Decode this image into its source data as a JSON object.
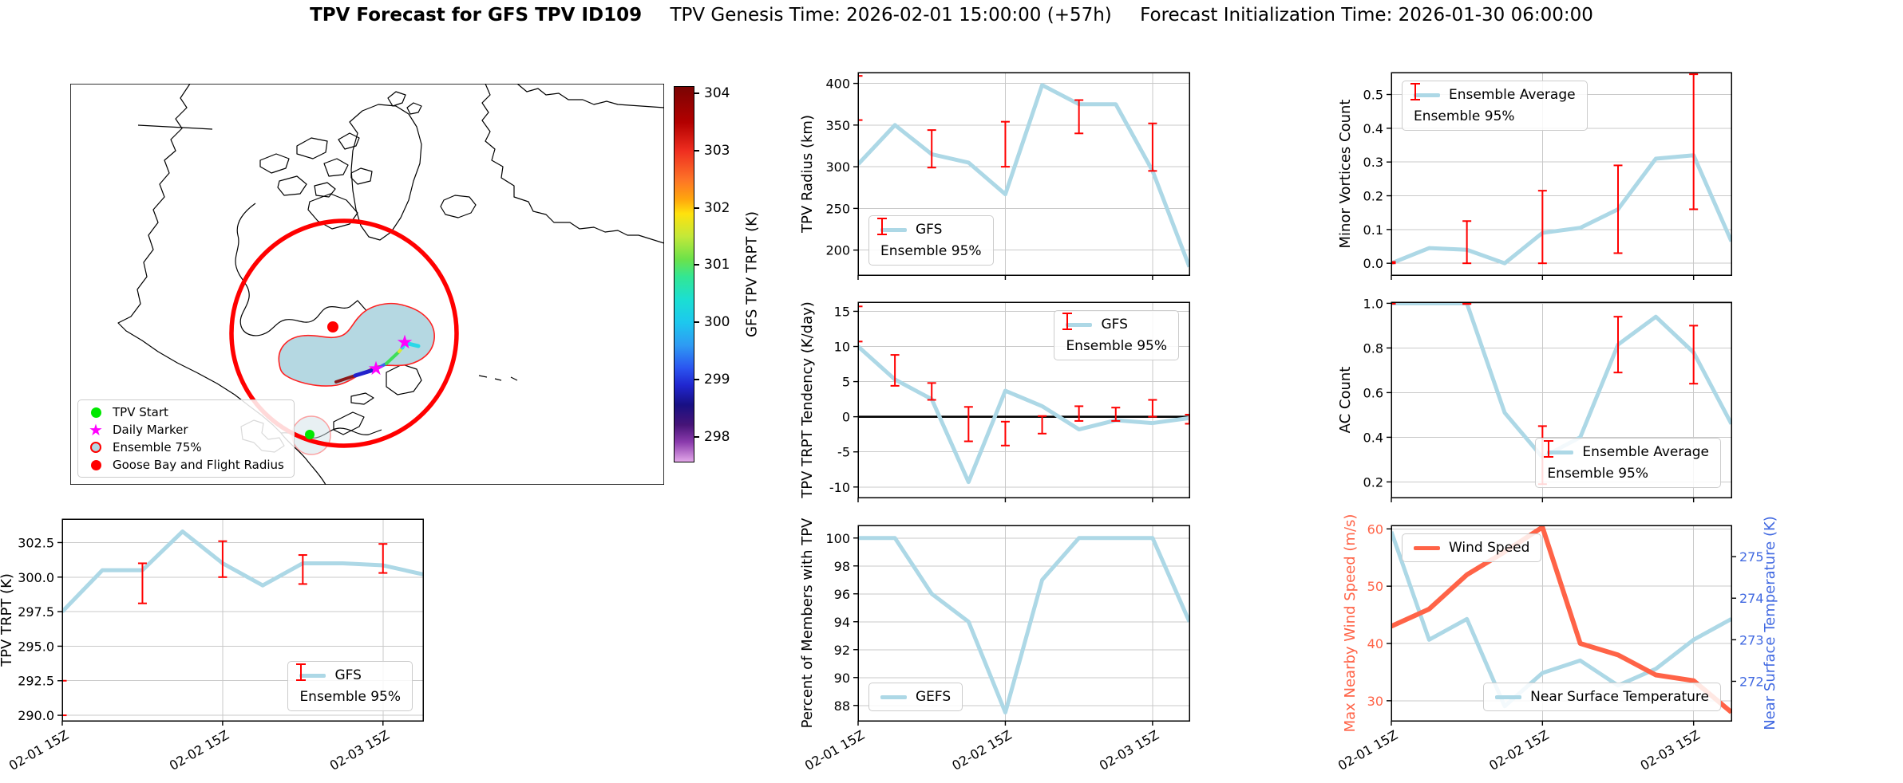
{
  "title": {
    "main": "TPV Forecast for GFS TPV ID109",
    "genesis": "TPV Genesis Time: 2026-02-01 15:00:00 (+57h)",
    "init": "Forecast Initialization Time: 2026-01-30 06:00:00"
  },
  "colors": {
    "gfs": "#ADD8E6",
    "error": "#FF0000",
    "wind": "#FF6347",
    "temp_axis": "#4169E1",
    "grid": "#C9C9C9",
    "spine": "#000000",
    "map_circle": "#FF0000",
    "ensemble_fill": "#B5D8E2",
    "star": "#FF00FF",
    "tpv_start": "#00E800"
  },
  "x_axis": {
    "n_points": 10,
    "tick_indices": [
      0,
      4,
      8
    ],
    "tick_labels": [
      "02-01 15Z",
      "02-02 15Z",
      "02-03 15Z"
    ]
  },
  "map": {
    "legend": [
      {
        "marker": "dot-green",
        "label": "TPV Start"
      },
      {
        "marker": "star-magenta",
        "label": "Daily Marker"
      },
      {
        "marker": "circle-ensemble",
        "label": "Ensemble 75%"
      },
      {
        "marker": "dot-red",
        "label": "Goose Bay and Flight Radius"
      }
    ],
    "colorbar": {
      "label": "GFS TPV TRPT (K)",
      "ticks": [
        304,
        303,
        302,
        301,
        300,
        299,
        298
      ],
      "vmin": 297.56,
      "vmax": 304.12
    }
  },
  "chart_data": [
    {
      "id": "tpv_radius",
      "type": "line",
      "ylabel": "TPV Radius (km)",
      "ylabel_dx": -58,
      "yticks": [
        200,
        250,
        300,
        350,
        400
      ],
      "ytick_labels": [
        "200",
        "250",
        "300",
        "350",
        "400"
      ],
      "ylim": [
        170,
        413
      ],
      "x_tick_labels_shown": false,
      "series": [
        {
          "name": "GFS",
          "color": "#ADD8E6",
          "width": 5,
          "values": [
            303,
            350,
            315,
            305,
            267,
            398,
            375,
            375,
            295,
            180
          ]
        }
      ],
      "errorbars": [
        {
          "i": 0,
          "lo": 356,
          "hi": 409
        },
        {
          "i": 2,
          "lo": 299,
          "hi": 344
        },
        {
          "i": 4,
          "lo": 300,
          "hi": 354
        },
        {
          "i": 6,
          "lo": 340,
          "hi": 380
        },
        {
          "i": 8,
          "lo": 295,
          "hi": 352
        }
      ],
      "legend": {
        "pos": "lower-left",
        "items": [
          {
            "glyph": "line",
            "color": "#ADD8E6",
            "label": "GFS"
          },
          {
            "glyph": "errorbar",
            "color": "#FF0000",
            "label": "Ensemble 95%"
          }
        ]
      }
    },
    {
      "id": "tpv_trpt_tendency",
      "type": "line",
      "ylabel": "TPV TRPT Tendency (K/day)",
      "ylabel_dx": -58,
      "yticks": [
        -10,
        -5,
        0,
        5,
        10,
        15
      ],
      "ytick_labels": [
        "-10",
        "-5",
        "0",
        "5",
        "10",
        "15"
      ],
      "ylim": [
        -11.5,
        16.3
      ],
      "zero_line": true,
      "x_tick_labels_shown": false,
      "series": [
        {
          "name": "GFS",
          "color": "#ADD8E6",
          "width": 5,
          "values": [
            10,
            5.3,
            2.5,
            -9.3,
            3.7,
            1.5,
            -1.8,
            -0.5,
            -0.9,
            -0.2
          ]
        }
      ],
      "errorbars": [
        {
          "i": 0,
          "lo": 10.7,
          "hi": 15.7
        },
        {
          "i": 1,
          "lo": 4.4,
          "hi": 8.8
        },
        {
          "i": 2,
          "lo": 2.4,
          "hi": 4.8
        },
        {
          "i": 3,
          "lo": -3.5,
          "hi": 1.4
        },
        {
          "i": 4,
          "lo": -4.1,
          "hi": -0.7
        },
        {
          "i": 5,
          "lo": -2.4,
          "hi": 0.1
        },
        {
          "i": 6,
          "lo": -0.6,
          "hi": 1.5
        },
        {
          "i": 7,
          "lo": -0.6,
          "hi": 1.3
        },
        {
          "i": 8,
          "lo": 0,
          "hi": 2.4
        },
        {
          "i": 9,
          "lo": -1,
          "hi": 0.3
        }
      ],
      "legend": {
        "pos": "upper-right",
        "items": [
          {
            "glyph": "line",
            "color": "#ADD8E6",
            "label": "GFS"
          },
          {
            "glyph": "errorbar",
            "color": "#FF0000",
            "label": "Ensemble 95%"
          }
        ]
      }
    },
    {
      "id": "percent_members",
      "type": "line",
      "ylabel": "Percent of Members with TPV",
      "ylabel_dx": -58,
      "yticks": [
        88,
        90,
        92,
        94,
        96,
        98,
        100
      ],
      "ytick_labels": [
        "88",
        "90",
        "92",
        "94",
        "96",
        "98",
        "100"
      ],
      "ylim": [
        86.9,
        100.9
      ],
      "x_tick_labels_shown": true,
      "series": [
        {
          "name": "GEFS",
          "color": "#ADD8E6",
          "width": 5,
          "values": [
            100,
            100,
            96,
            94,
            87.5,
            97,
            100,
            100,
            100,
            94
          ]
        }
      ],
      "legend": {
        "pos": "lower-left",
        "items": [
          {
            "glyph": "line",
            "color": "#ADD8E6",
            "label": "GEFS"
          }
        ]
      }
    },
    {
      "id": "minor_vortices",
      "type": "line",
      "ylabel": "Minor Vortices Count",
      "ylabel_dx": -52,
      "yticks": [
        0,
        0.1,
        0.2,
        0.3,
        0.4,
        0.5
      ],
      "ytick_labels": [
        "0.0",
        "0.1",
        "0.2",
        "0.3",
        "0.4",
        "0.5"
      ],
      "ylim": [
        -0.035,
        0.565
      ],
      "x_tick_labels_shown": false,
      "series": [
        {
          "name": "Ensemble Average",
          "color": "#ADD8E6",
          "width": 5,
          "values": [
            0,
            0.045,
            0.04,
            0,
            0.09,
            0.105,
            0.16,
            0.31,
            0.32,
            0.065
          ]
        }
      ],
      "errorbars": [
        {
          "i": 0,
          "lo": 0,
          "hi": 0.004
        },
        {
          "i": 2,
          "lo": 0,
          "hi": 0.125
        },
        {
          "i": 4,
          "lo": 0,
          "hi": 0.215
        },
        {
          "i": 6,
          "lo": 0.03,
          "hi": 0.29
        },
        {
          "i": 8,
          "lo": 0.16,
          "hi": 0.56
        }
      ],
      "legend": {
        "pos": "upper-left",
        "items": [
          {
            "glyph": "line",
            "color": "#ADD8E6",
            "label": "Ensemble Average"
          },
          {
            "glyph": "errorbar",
            "color": "#FF0000",
            "label": "Ensemble 95%"
          }
        ]
      }
    },
    {
      "id": "ac_count",
      "type": "line",
      "ylabel": "AC Count",
      "ylabel_dx": -52,
      "yticks": [
        0.2,
        0.4,
        0.6,
        0.8,
        1.0
      ],
      "ytick_labels": [
        "0.2",
        "0.4",
        "0.6",
        "0.8",
        "1.0"
      ],
      "ylim": [
        0.13,
        1.005
      ],
      "x_tick_labels_shown": false,
      "series": [
        {
          "name": "Ensemble Average",
          "color": "#ADD8E6",
          "width": 5,
          "values": [
            1,
            1,
            1,
            0.51,
            0.31,
            0.4,
            0.815,
            0.94,
            0.78,
            0.46
          ]
        }
      ],
      "errorbars": [
        {
          "i": 0,
          "lo": 0.998,
          "hi": 1.002
        },
        {
          "i": 2,
          "lo": 0.997,
          "hi": 1.002
        },
        {
          "i": 4,
          "lo": 0.19,
          "hi": 0.45
        },
        {
          "i": 6,
          "lo": 0.69,
          "hi": 0.94
        },
        {
          "i": 8,
          "lo": 0.64,
          "hi": 0.9
        }
      ],
      "legend": {
        "pos": "lower-right",
        "items": [
          {
            "glyph": "line",
            "color": "#ADD8E6",
            "label": "Ensemble Average"
          },
          {
            "glyph": "errorbar",
            "color": "#FF0000",
            "label": "Ensemble 95%"
          }
        ]
      }
    },
    {
      "id": "wind_temp",
      "type": "line-dual",
      "ylabel": "Max Nearby Wind Speed (m/s)",
      "ylabel_dx": -46,
      "ylabel_color": "#FF6347",
      "ylabel_right": "Near Surface Temperature (K)",
      "ylabel_right_dx": 54,
      "ylabel_right_color": "#4169E1",
      "yticks": [
        30,
        40,
        50,
        60
      ],
      "ytick_labels": [
        "30",
        "40",
        "50",
        "60"
      ],
      "ytick_color": "#FF6347",
      "ylim": [
        26.5,
        60.6
      ],
      "yticks_right": [
        272,
        273,
        274,
        275
      ],
      "ytick_labels_right": [
        "272",
        "273",
        "274",
        "275"
      ],
      "ytick_color_right": "#4169E1",
      "ylim_right": [
        271.05,
        275.75
      ],
      "x_tick_labels_shown": true,
      "series": [
        {
          "name": "Near Surface Temperature",
          "axis": "right",
          "color": "#ADD8E6",
          "width": 5,
          "values": [
            275.6,
            273,
            273.5,
            271.4,
            272.2,
            272.5,
            271.9,
            272.3,
            273,
            273.5
          ]
        },
        {
          "name": "Wind Speed",
          "axis": "left",
          "color": "#FF6347",
          "width": 6,
          "values": [
            43,
            46,
            52,
            56,
            60.3,
            40,
            38,
            34.5,
            33.5,
            28
          ]
        }
      ],
      "legend": {
        "pos": "upper-left",
        "items": [
          {
            "glyph": "line",
            "color": "#FF6347",
            "label": "Wind Speed"
          }
        ]
      },
      "legend2": {
        "pos": "lower-right",
        "items": [
          {
            "glyph": "line",
            "color": "#ADD8E6",
            "label": "Near Surface Temperature"
          }
        ]
      }
    },
    {
      "id": "tpv_trpt",
      "type": "line",
      "ylabel": "TPV TRPT (K)",
      "ylabel_dx": -64,
      "yticks": [
        290,
        292.5,
        295,
        297.5,
        300,
        302.5
      ],
      "ytick_labels": [
        "290.0",
        "292.5",
        "295.0",
        "297.5",
        "300.0",
        "302.5"
      ],
      "ylim": [
        289.6,
        304.2
      ],
      "x_tick_labels_shown": true,
      "series": [
        {
          "name": "GFS",
          "color": "#ADD8E6",
          "width": 5,
          "values": [
            297.5,
            300.5,
            300.5,
            303.3,
            301,
            299.4,
            301,
            301,
            300.85,
            300.2
          ]
        }
      ],
      "errorbars": [
        {
          "i": 0,
          "lo": 290,
          "hi": 292.5
        },
        {
          "i": 2,
          "lo": 298.1,
          "hi": 301
        },
        {
          "i": 4,
          "lo": 300,
          "hi": 302.6
        },
        {
          "i": 6,
          "lo": 299.5,
          "hi": 301.6
        },
        {
          "i": 8,
          "lo": 300.3,
          "hi": 302.4
        }
      ],
      "legend": {
        "pos": "lower-right",
        "items": [
          {
            "glyph": "line",
            "color": "#ADD8E6",
            "label": "GFS"
          },
          {
            "glyph": "errorbar",
            "color": "#FF0000",
            "label": "Ensemble 95%"
          }
        ]
      }
    }
  ]
}
